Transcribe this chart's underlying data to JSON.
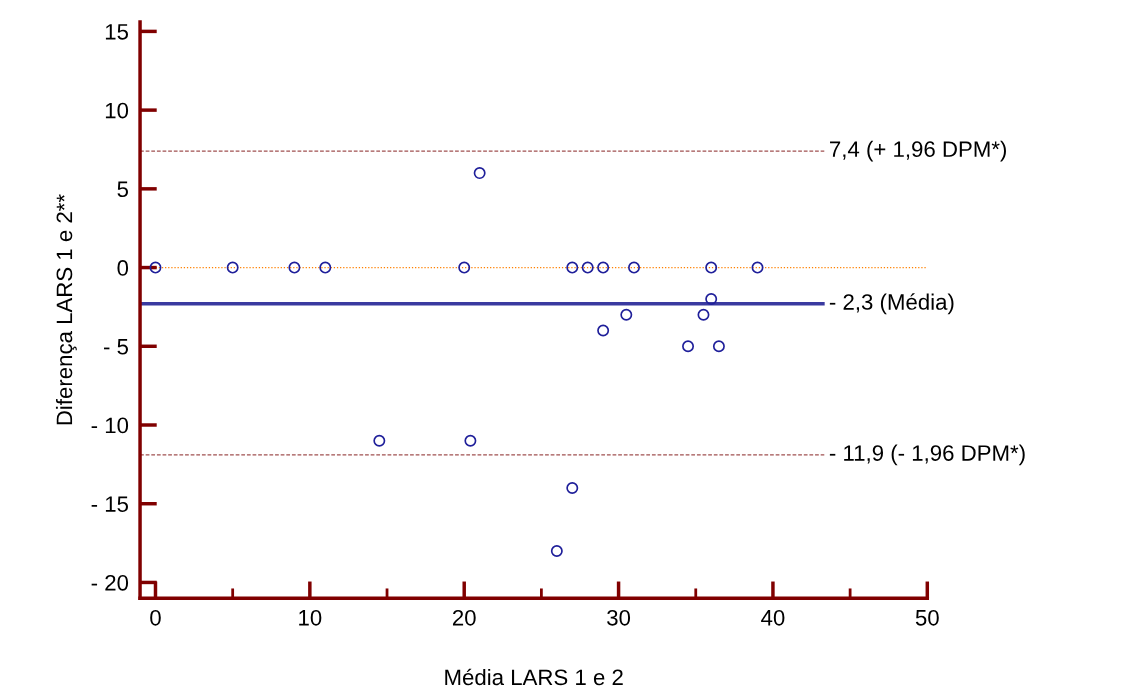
{
  "chart_data": {
    "type": "scatter",
    "xlabel": "Média LARS 1 e 2",
    "ylabel": "Diferença LARS 1 e 2**",
    "x": [
      0,
      5,
      9,
      11,
      20,
      21,
      14.5,
      20.4,
      27,
      26,
      27,
      28,
      29,
      31,
      36,
      39,
      36,
      30.5,
      29,
      35.5,
      34.5,
      36.5
    ],
    "series": [
      {
        "color": "#1f1f9a",
        "values": [
          0,
          0,
          0,
          0,
          0,
          6,
          -11,
          -11,
          -14,
          -18,
          0,
          0,
          0,
          0,
          0,
          0,
          -2,
          -3,
          -4,
          -3,
          -5,
          -5
        ]
      }
    ],
    "marker": "circle",
    "grid": false,
    "xlim": [
      -1,
      50
    ],
    "xticks": [
      0,
      10,
      20,
      30,
      40,
      50
    ],
    "ylim": [
      -21,
      15.6
    ],
    "yticks": [
      {
        "value": -20,
        "label": "- 20"
      },
      {
        "value": -15,
        "label": "- 15"
      },
      {
        "value": -10,
        "label": "- 10"
      },
      {
        "value": -5,
        "label": "- 5"
      },
      0,
      5,
      10,
      15
    ],
    "ref_lines": [
      {
        "axis": "y",
        "value": 7.4,
        "label": "7,4 (+ 1,96 DPM*)",
        "color": "#a05050",
        "line_style": "dashed"
      },
      {
        "axis": "y",
        "value": 0,
        "label": null,
        "color": "#ff8000",
        "line_style": "dotted"
      },
      {
        "axis": "y",
        "value": -2.3,
        "label": "- 2,3 (Média)",
        "color": "#3a3aa0",
        "line_style": "solid"
      },
      {
        "axis": "y",
        "value": -11.9,
        "label": "- 11,9 (- 1,96 DPM*)",
        "color": "#a05050",
        "line_style": "dashed"
      }
    ]
  }
}
